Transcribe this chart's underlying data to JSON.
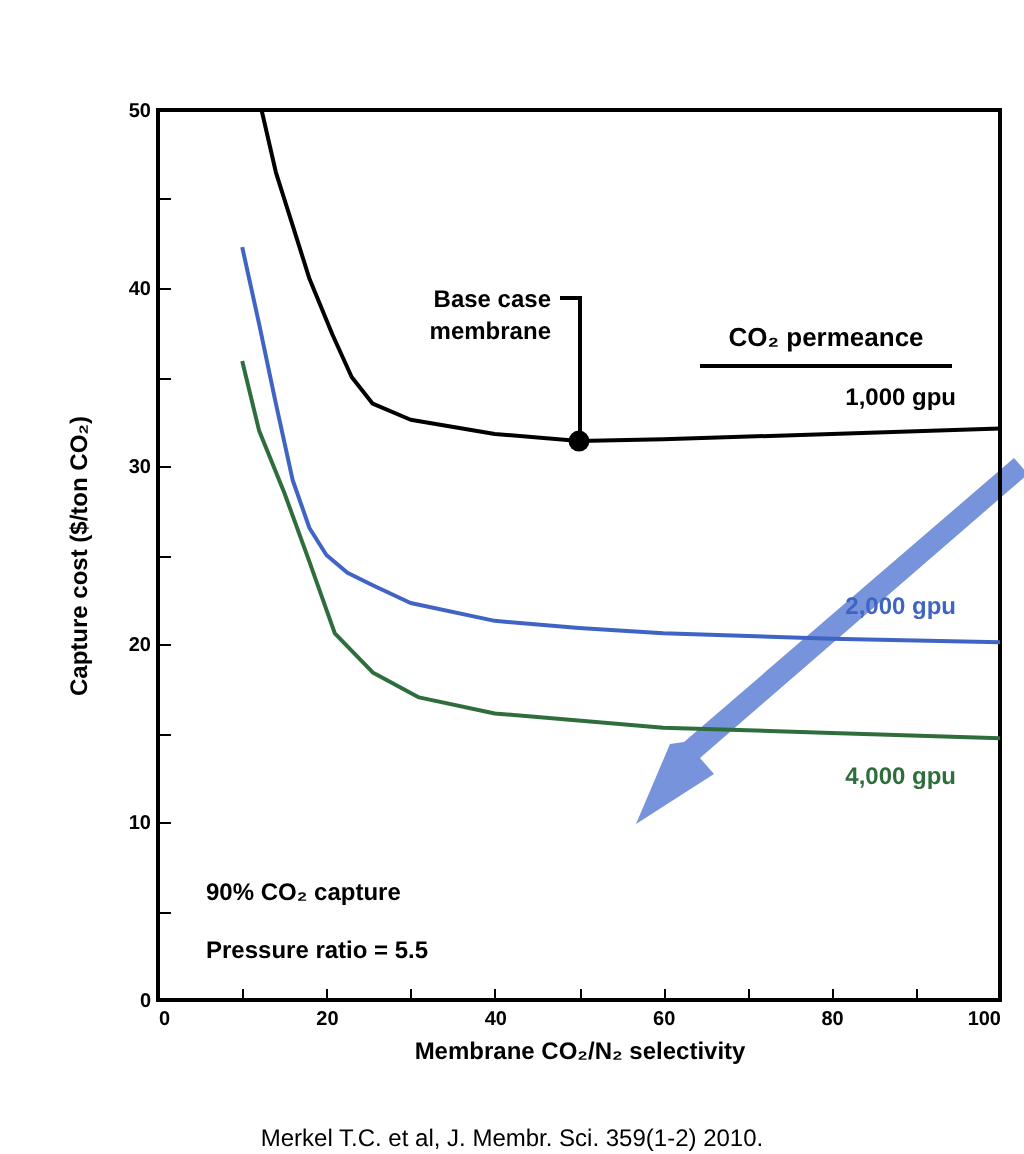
{
  "chart_data": {
    "type": "line",
    "xlabel": "Membrane CO₂/N₂ selectivity",
    "ylabel": "Capture cost ($/ton CO₂)",
    "legend_title": "CO₂ permeance",
    "xlim": [
      0,
      100
    ],
    "xticks": [
      0,
      {
        "value": 10,
        "label": null
      },
      20,
      {
        "value": 30,
        "label": null
      },
      40,
      {
        "value": 50,
        "label": null
      },
      60,
      {
        "value": 70,
        "label": null
      },
      80,
      {
        "value": 90,
        "label": null
      },
      100
    ],
    "ylim": [
      0,
      50
    ],
    "yticks": [
      0,
      {
        "value": 5,
        "label": null
      },
      10,
      {
        "value": 15,
        "label": null
      },
      20,
      {
        "value": 25,
        "label": null
      },
      30,
      {
        "value": 35,
        "label": null
      },
      40,
      {
        "value": 45,
        "label": null
      },
      50
    ],
    "grid": false,
    "series": [
      {
        "name": "1,000 gpu",
        "color": "#000000",
        "x": [
          12.3,
          14,
          16,
          18,
          20.7,
          23,
          25.5,
          30,
          40,
          50,
          60,
          80,
          100
        ],
        "values": [
          50,
          46.5,
          43.5,
          40.5,
          37.4,
          35,
          33.5,
          32.6,
          31.8,
          31.4,
          31.5,
          31.8,
          32.1
        ]
      },
      {
        "name": "2,000 gpu",
        "color": "#4064c4",
        "x": [
          10,
          12,
          14,
          16,
          18,
          20,
          22.5,
          25.5,
          30,
          40,
          50,
          60,
          80,
          100
        ],
        "values": [
          42.3,
          38,
          33.5,
          29.2,
          26.5,
          25,
          24,
          23.3,
          22.3,
          21.3,
          20.9,
          20.6,
          20.3,
          20.1
        ]
      },
      {
        "name": "4,000 gpu",
        "color": "#2e6e3c",
        "x": [
          10,
          12,
          15,
          18,
          21,
          25.5,
          31,
          40,
          60,
          80,
          100
        ],
        "values": [
          35.9,
          32,
          28.5,
          24.6,
          20.6,
          18.4,
          17,
          16.1,
          15.3,
          15,
          14.7
        ]
      },
      {
        "type": "scatter",
        "color": "#000000",
        "x": [
          50
        ],
        "values": [
          31.4
        ]
      }
    ],
    "annotations": [
      {
        "text": "Base case membrane",
        "x": 50,
        "y": 31.4
      },
      "90% CO₂ capture",
      "Pressure ratio = 5.5",
      "Merkel T.C. et al, J. Membr. Sci. 359(1-2) 2010."
    ]
  }
}
